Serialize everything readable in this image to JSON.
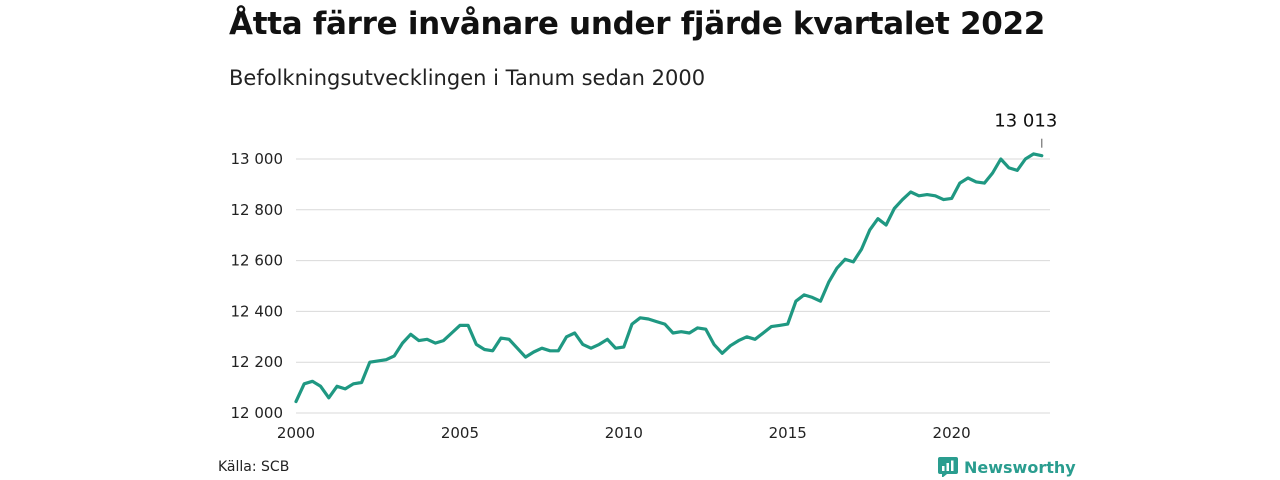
{
  "header": {
    "title": "Åtta färre invånare under fjärde kvartalet 2022",
    "subtitle": "Befolkningsutvecklingen i Tanum sedan 2000"
  },
  "footer": {
    "source": "Källa: SCB",
    "brand": "Newsworthy",
    "brand_icon": "bar-chart-icon"
  },
  "colors": {
    "line": "#1f9882",
    "grid": "#d9d9d9",
    "brand": "#2a9d8f"
  },
  "chart_data": {
    "type": "line",
    "title": "Åtta färre invånare under fjärde kvartalet 2022",
    "subtitle": "Befolkningsutvecklingen i Tanum sedan 2000",
    "xlim": [
      2000,
      2023
    ],
    "ylim": [
      12000,
      13000
    ],
    "x_ticks": [
      2000,
      2005,
      2010,
      2015,
      2020
    ],
    "x_tick_labels": [
      "2000",
      "2005",
      "2010",
      "2015",
      "2020"
    ],
    "y_ticks": [
      12000,
      12200,
      12400,
      12600,
      12800,
      13000
    ],
    "y_tick_labels": [
      "12 000",
      "12 200",
      "12 400",
      "12 600",
      "12 800",
      "13 000"
    ],
    "grid": "horizontal",
    "annotation": {
      "label": "13 013",
      "x": 2022.75,
      "y": 13013
    },
    "series": [
      {
        "x": [
          2000.0,
          2000.25,
          2000.5,
          2000.75,
          2001.0,
          2001.25,
          2001.5,
          2001.75,
          2002.0,
          2002.25,
          2002.5,
          2002.75,
          2003.0,
          2003.25,
          2003.5,
          2003.75,
          2004.0,
          2004.25,
          2004.5,
          2004.75,
          2005.0,
          2005.25,
          2005.5,
          2005.75,
          2006.0,
          2006.25,
          2006.5,
          2006.75,
          2007.0,
          2007.25,
          2007.5,
          2007.75,
          2008.0,
          2008.25,
          2008.5,
          2008.75,
          2009.0,
          2009.25,
          2009.5,
          2009.75,
          2010.0,
          2010.25,
          2010.5,
          2010.75,
          2011.0,
          2011.25,
          2011.5,
          2011.75,
          2012.0,
          2012.25,
          2012.5,
          2012.75,
          2013.0,
          2013.25,
          2013.5,
          2013.75,
          2014.0,
          2014.25,
          2014.5,
          2014.75,
          2015.0,
          2015.25,
          2015.5,
          2015.75,
          2016.0,
          2016.25,
          2016.5,
          2016.75,
          2017.0,
          2017.25,
          2017.5,
          2017.75,
          2018.0,
          2018.25,
          2018.5,
          2018.75,
          2019.0,
          2019.25,
          2019.5,
          2019.75,
          2020.0,
          2020.25,
          2020.5,
          2020.75,
          2021.0,
          2021.25,
          2021.5,
          2021.75,
          2022.0,
          2022.25,
          2022.5,
          2022.75
        ],
        "values": [
          12045,
          12115,
          12125,
          12105,
          12060,
          12105,
          12095,
          12115,
          12120,
          12200,
          12205,
          12210,
          12225,
          12275,
          12310,
          12285,
          12290,
          12275,
          12285,
          12315,
          12345,
          12345,
          12270,
          12250,
          12245,
          12295,
          12290,
          12255,
          12220,
          12240,
          12255,
          12245,
          12245,
          12300,
          12315,
          12270,
          12255,
          12270,
          12290,
          12255,
          12260,
          12350,
          12375,
          12370,
          12360,
          12350,
          12315,
          12320,
          12315,
          12335,
          12330,
          12270,
          12235,
          12265,
          12285,
          12300,
          12290,
          12315,
          12340,
          12345,
          12350,
          12440,
          12465,
          12455,
          12440,
          12515,
          12570,
          12605,
          12595,
          12645,
          12720,
          12765,
          12740,
          12805,
          12840,
          12870,
          12855,
          12860,
          12855,
          12840,
          12845,
          12905,
          12925,
          12910,
          12905,
          12945,
          13000,
          12965,
          12955,
          13000,
          13020,
          13013
        ]
      }
    ]
  }
}
